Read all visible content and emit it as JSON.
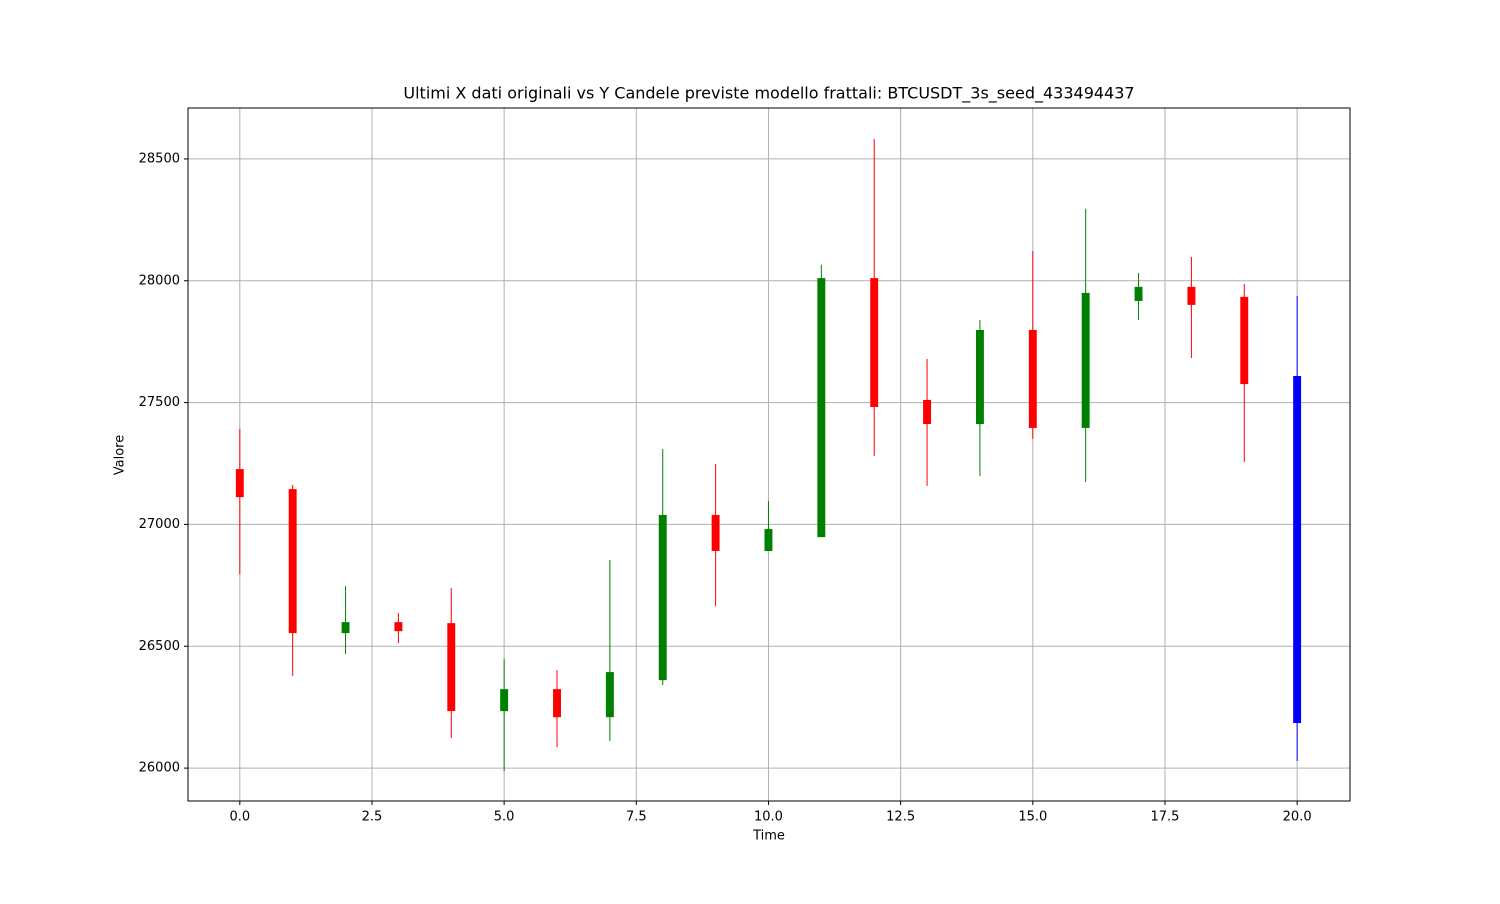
{
  "chart_data": {
    "type": "candlestick",
    "title": "Ultimi X dati originali vs Y Candele previste modello frattali: BTCUSDT_3s_seed_433494437",
    "x_label": "Time",
    "y_label": "Valore",
    "x": [
      0,
      1,
      2,
      3,
      4,
      5,
      6,
      7,
      8,
      9,
      10,
      11,
      12,
      13,
      14,
      15,
      16,
      17,
      18,
      19,
      20
    ],
    "open": [
      27227,
      27145,
      26554,
      26599,
      26595,
      26234,
      26324,
      26209,
      26361,
      27039,
      26891,
      26948,
      28011,
      27511,
      27412,
      27798,
      27396,
      27917,
      27975,
      27934,
      27609
    ],
    "high": [
      27392,
      27162,
      26747,
      26636,
      26739,
      26447,
      26402,
      26854,
      27309,
      27248,
      27096,
      28065,
      28582,
      27679,
      27839,
      28122,
      28295,
      28032,
      28098,
      27987,
      27938
    ],
    "low": [
      26796,
      26378,
      26468,
      26513,
      26123,
      25988,
      26086,
      26111,
      26341,
      26665,
      26891,
      26948,
      27281,
      27158,
      27199,
      27351,
      27174,
      27839,
      27683,
      27256,
      26029
    ],
    "close": [
      27112,
      26554,
      26599,
      26562,
      26234,
      26324,
      26209,
      26394,
      27039,
      26891,
      26981,
      28011,
      27482,
      27412,
      27798,
      27396,
      27950,
      27975,
      27901,
      27576,
      26185
    ],
    "colors": [
      "#ff0000",
      "#ff0000",
      "#008000",
      "#ff0000",
      "#ff0000",
      "#008000",
      "#ff0000",
      "#008000",
      "#008000",
      "#ff0000",
      "#008000",
      "#008000",
      "#ff0000",
      "#ff0000",
      "#008000",
      "#ff0000",
      "#008000",
      "#008000",
      "#ff0000",
      "#ff0000",
      "#0000ff"
    ],
    "xlim": [
      -0.98,
      21.0
    ],
    "ylim": [
      25865,
      28709
    ],
    "xticks": [
      {
        "value": 0,
        "label": "0.0"
      },
      {
        "value": 2.5,
        "label": "2.5"
      },
      {
        "value": 5,
        "label": "5.0"
      },
      {
        "value": 7.5,
        "label": "7.5"
      },
      {
        "value": 10,
        "label": "10.0"
      },
      {
        "value": 12.5,
        "label": "12.5"
      },
      {
        "value": 15,
        "label": "15.0"
      },
      {
        "value": 17.5,
        "label": "17.5"
      },
      {
        "value": 20,
        "label": "20.0"
      }
    ],
    "yticks": [
      26000,
      26500,
      27000,
      27500,
      28000,
      28500
    ],
    "grid": true
  }
}
